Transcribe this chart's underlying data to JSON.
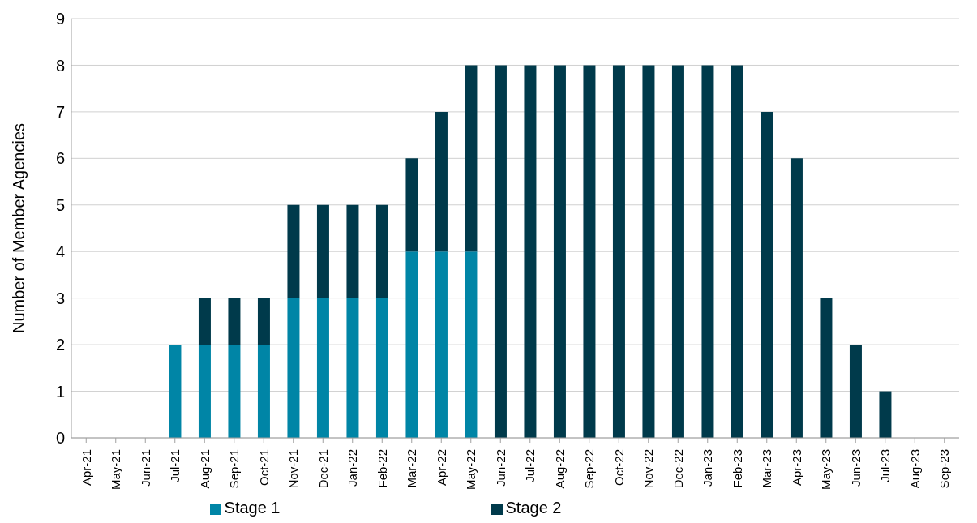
{
  "chart_data": {
    "type": "bar",
    "stacked": true,
    "ylabel": "Number of Member Agencies",
    "categories": [
      "Apr-21",
      "May-21",
      "Jun-21",
      "Jul-21",
      "Aug-21",
      "Sep-21",
      "Oct-21",
      "Nov-21",
      "Dec-21",
      "Jan-22",
      "Feb-22",
      "Mar-22",
      "Apr-22",
      "May-22",
      "Jun-22",
      "Jul-22",
      "Aug-22",
      "Sep-22",
      "Oct-22",
      "Nov-22",
      "Dec-22",
      "Jan-23",
      "Feb-23",
      "Mar-23",
      "Apr-23",
      "May-23",
      "Jun-23",
      "Jul-23",
      "Aug-23",
      "Sep-23"
    ],
    "series": [
      {
        "name": "Stage 1",
        "color": "#0085a6",
        "values": [
          0,
          0,
          0,
          2,
          2,
          2,
          2,
          3,
          3,
          3,
          3,
          4,
          4,
          4,
          0,
          0,
          0,
          0,
          0,
          0,
          0,
          0,
          0,
          0,
          0,
          0,
          0,
          0,
          0,
          0
        ]
      },
      {
        "name": "Stage 2",
        "color": "#003a4b",
        "values": [
          0,
          0,
          0,
          0,
          1,
          1,
          1,
          2,
          2,
          2,
          2,
          2,
          3,
          4,
          8,
          8,
          8,
          8,
          8,
          8,
          8,
          8,
          8,
          7,
          6,
          3,
          2,
          1,
          0,
          0
        ]
      }
    ],
    "ylim": [
      0,
      9
    ],
    "yticks": [
      0,
      1,
      2,
      3,
      4,
      5,
      6,
      7,
      8,
      9
    ],
    "grid": "y",
    "legend": "bottom"
  }
}
